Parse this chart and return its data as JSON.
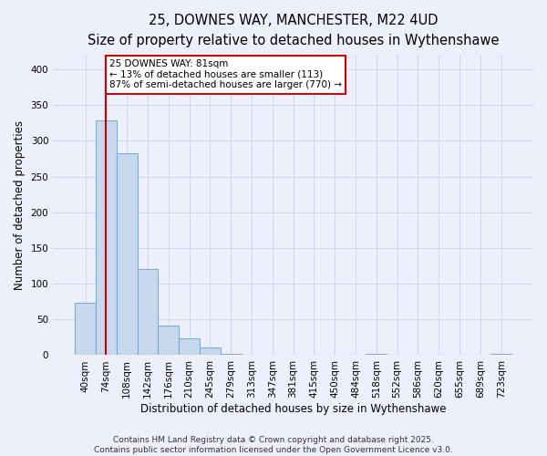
{
  "title_line1": "25, DOWNES WAY, MANCHESTER, M22 4UD",
  "title_line2": "Size of property relative to detached houses in Wythenshawe",
  "xlabel": "Distribution of detached houses by size in Wythenshawe",
  "ylabel": "Number of detached properties",
  "categories": [
    "40sqm",
    "74sqm",
    "108sqm",
    "142sqm",
    "176sqm",
    "210sqm",
    "245sqm",
    "279sqm",
    "313sqm",
    "347sqm",
    "381sqm",
    "415sqm",
    "450sqm",
    "484sqm",
    "518sqm",
    "552sqm",
    "586sqm",
    "620sqm",
    "655sqm",
    "689sqm",
    "723sqm"
  ],
  "values": [
    73,
    328,
    283,
    120,
    42,
    23,
    11,
    2,
    1,
    0,
    1,
    0,
    0,
    0,
    2,
    0,
    0,
    0,
    0,
    0,
    2
  ],
  "bar_color": "#c8d8ee",
  "bar_edge_color": "#7aafd4",
  "red_line_x": 1.0,
  "annotation_title": "25 DOWNES WAY: 81sqm",
  "annotation_line2": "← 13% of detached houses are smaller (113)",
  "annotation_line3": "87% of semi-detached houses are larger (770) →",
  "annotation_box_color": "#ffffff",
  "annotation_box_edge": "#cc0000",
  "red_line_color": "#cc0000",
  "footer_line1": "Contains HM Land Registry data © Crown copyright and database right 2025.",
  "footer_line2": "Contains public sector information licensed under the Open Government Licence v3.0.",
  "ylim": [
    0,
    420
  ],
  "yticks": [
    0,
    50,
    100,
    150,
    200,
    250,
    300,
    350,
    400
  ],
  "background_color": "#edf0fb",
  "grid_color": "#d0d8f0",
  "title_fontsize": 10.5,
  "subtitle_fontsize": 9.5,
  "axis_label_fontsize": 8.5,
  "tick_fontsize": 7.5,
  "footer_fontsize": 6.5,
  "annotation_fontsize": 7.5
}
